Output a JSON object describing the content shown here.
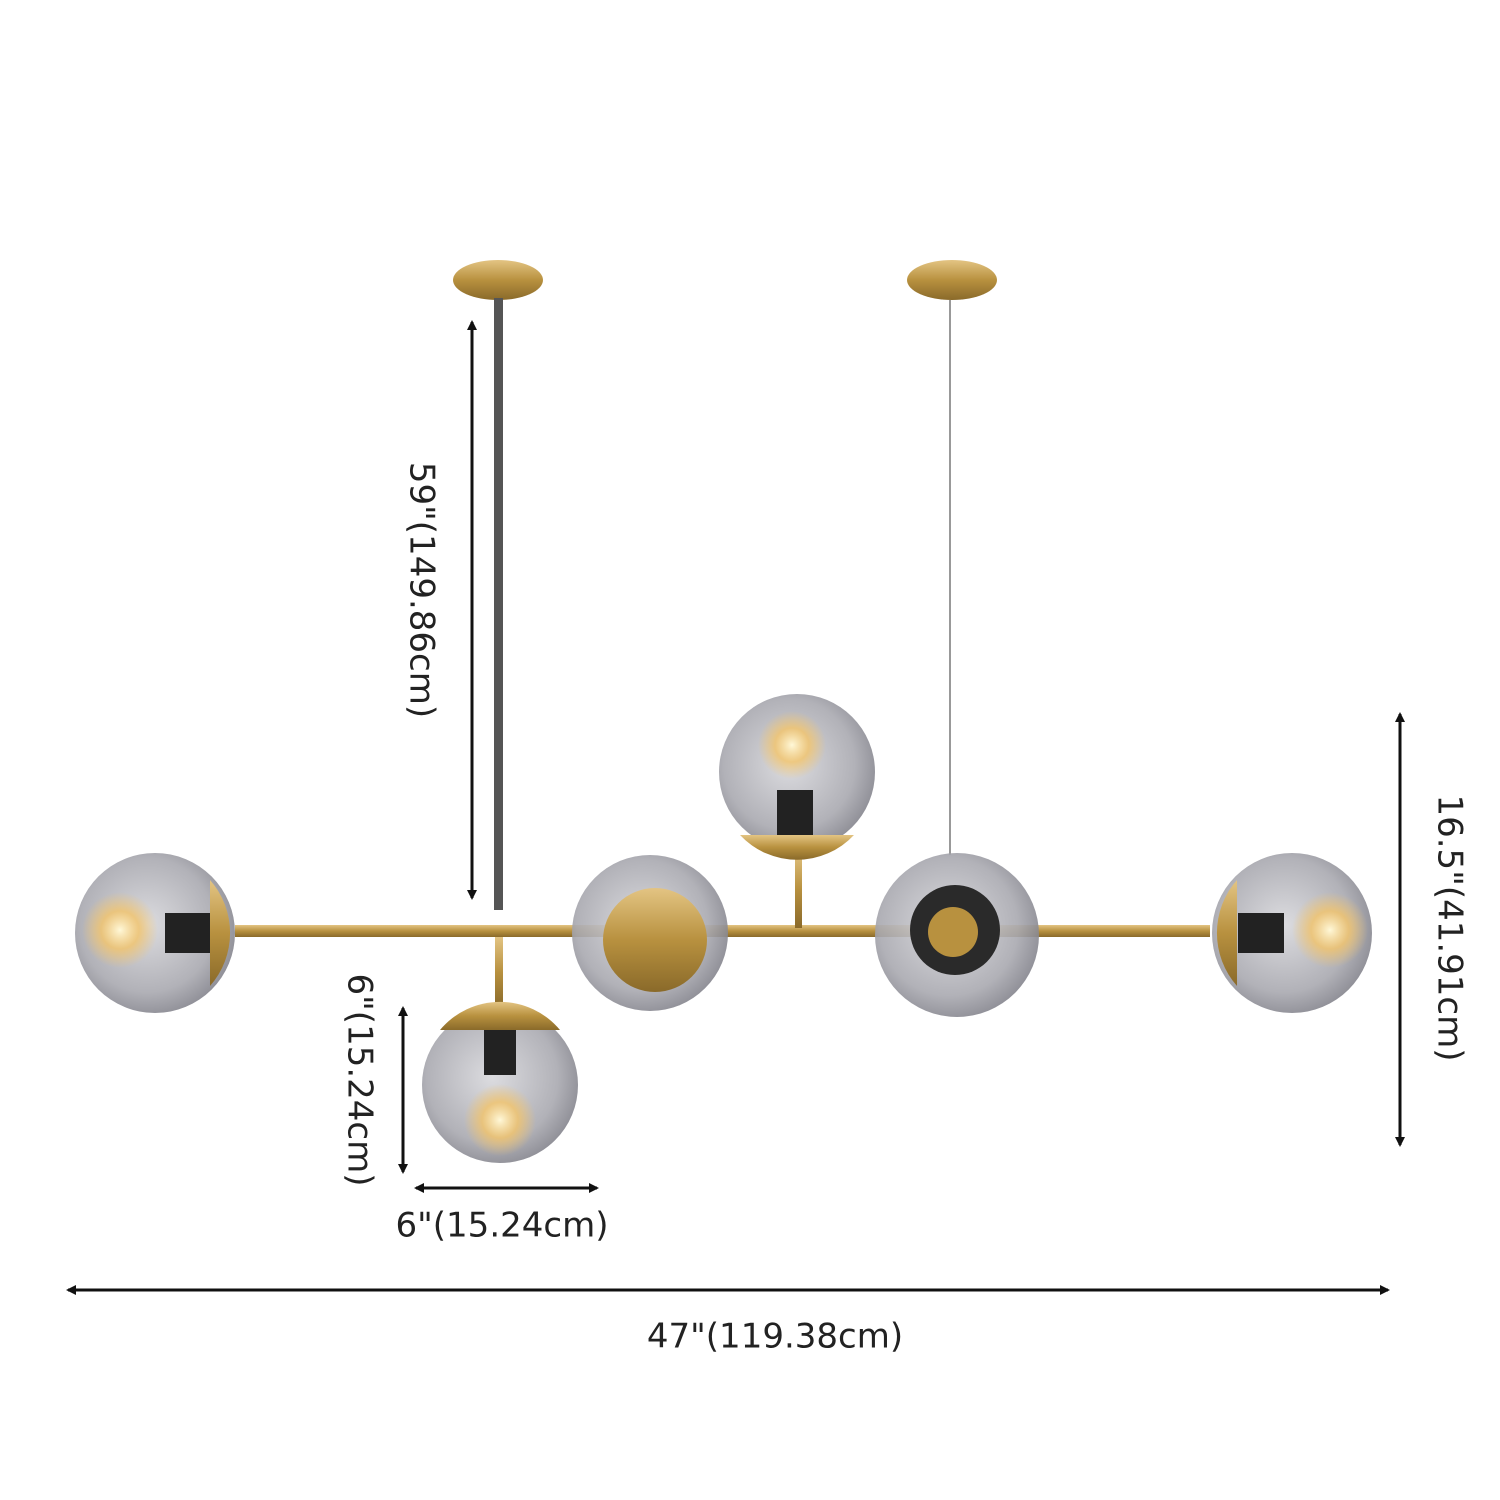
{
  "dimensions": {
    "drop_length": "59\"(149.86cm)",
    "fixture_height": "16.5\"(41.91cm)",
    "globe_height": "6\"(15.24cm)",
    "globe_width": "6\"(15.24cm)",
    "overall_width": "47\"(119.38cm)"
  }
}
